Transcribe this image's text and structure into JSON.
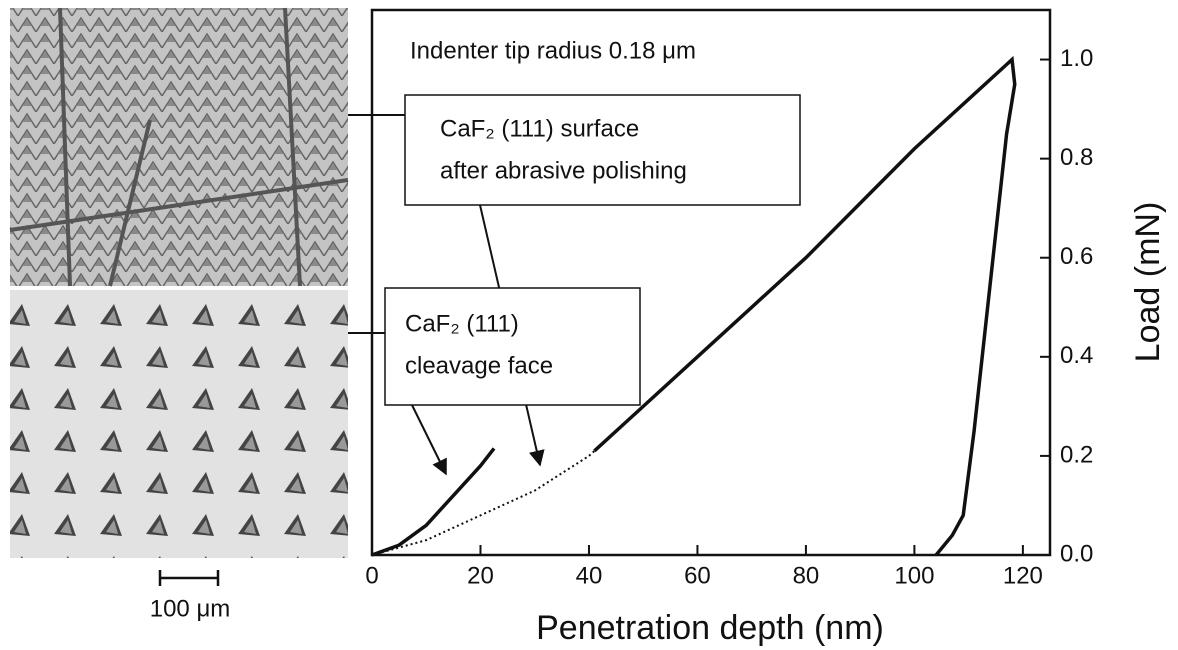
{
  "chart_data": {
    "type": "line",
    "title": "Indenter tip radius 0.18 μm",
    "xlabel": "Penetration depth (nm)",
    "ylabel": "Load (mN)",
    "annotations": [
      {
        "lines": [
          "CaF₂ (111) surface",
          "after abrasive polishing"
        ]
      },
      {
        "lines": [
          "CaF₂ (111)",
          "cleavage face"
        ]
      }
    ],
    "scale_bar": "100 μm",
    "xlim": [
      0,
      125
    ],
    "ylim": [
      0,
      1.1
    ],
    "xticks": [
      0,
      20,
      40,
      60,
      80,
      100,
      120
    ],
    "yticks": [
      {
        "value": 0,
        "label": "0.0"
      },
      0.2,
      0.4,
      0.6,
      0.8,
      {
        "value": 1,
        "label": "1.0"
      }
    ],
    "series": [
      {
        "color": "#111111",
        "style": "solid",
        "x": [
          0,
          5,
          10,
          15,
          20,
          22.5
        ],
        "values": [
          0,
          0.02,
          0.06,
          0.12,
          0.18,
          0.215
        ]
      },
      {
        "color": "#111111",
        "style": "solid",
        "x": [
          41,
          50,
          60,
          70,
          80,
          90,
          100,
          110,
          117,
          118,
          118.5,
          117,
          115,
          113,
          111,
          109,
          107,
          104
        ],
        "values": [
          0.21,
          0.3,
          0.4,
          0.5,
          0.6,
          0.71,
          0.82,
          0.92,
          0.99,
          1.0,
          0.95,
          0.85,
          0.65,
          0.45,
          0.25,
          0.08,
          0.04,
          0
        ]
      },
      {
        "color": "#111111",
        "style": "dotted",
        "x": [
          0,
          10,
          20,
          30,
          40,
          50,
          60,
          70,
          80,
          90,
          100,
          110,
          117,
          118,
          118.5,
          117,
          115,
          113,
          111,
          109,
          107,
          104
        ],
        "values": [
          0,
          0.03,
          0.08,
          0.13,
          0.2,
          0.3,
          0.4,
          0.5,
          0.6,
          0.71,
          0.82,
          0.92,
          0.99,
          1.0,
          0.95,
          0.85,
          0.65,
          0.45,
          0.25,
          0.08,
          0.04,
          0
        ]
      }
    ]
  }
}
